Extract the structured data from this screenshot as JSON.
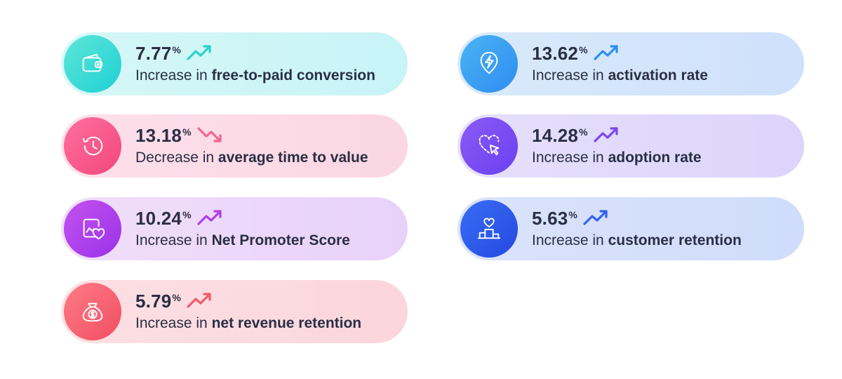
{
  "metrics": [
    {
      "value": "7.77",
      "unit": "%",
      "direction": "up",
      "prefix": "Increase in",
      "label": "free-to-paid conversion",
      "icon": "wallet-icon",
      "colors": {
        "bg_from": "#d6f7f6",
        "bg_to": "#c8f4f7",
        "circle_from": "#5ee6d8",
        "circle_to": "#1fd0d4",
        "arrow": "#2cd2c8"
      }
    },
    {
      "value": "13.62",
      "unit": "%",
      "direction": "up",
      "prefix": "Increase in",
      "label": "activation rate",
      "icon": "lightning-badge-icon",
      "colors": {
        "bg_from": "#d9eafb",
        "bg_to": "#cfe1fb",
        "circle_from": "#4cb4f5",
        "circle_to": "#2d8cf0",
        "arrow": "#2a8ff0"
      }
    },
    {
      "value": "13.18",
      "unit": "%",
      "direction": "down",
      "prefix": "Decrease in",
      "label": "average time to value",
      "icon": "history-clock-icon",
      "colors": {
        "bg_from": "#fde0ea",
        "bg_to": "#fbd6e3",
        "circle_from": "#ff6fa0",
        "circle_to": "#f2477c",
        "arrow": "#f2668f"
      }
    },
    {
      "value": "14.28",
      "unit": "%",
      "direction": "up",
      "prefix": "Increase in",
      "label": "adoption rate",
      "icon": "heart-cursor-icon",
      "colors": {
        "bg_from": "#e6e0fb",
        "bg_to": "#dcd4fb",
        "circle_from": "#8a5cf6",
        "circle_to": "#6b3ff0",
        "arrow": "#7a48f0"
      }
    },
    {
      "value": "10.24",
      "unit": "%",
      "direction": "up",
      "prefix": "Increase in",
      "label": "Net Promoter Score",
      "icon": "chart-heart-icon",
      "colors": {
        "bg_from": "#f1def9",
        "bg_to": "#e8d2fa",
        "circle_from": "#c352f0",
        "circle_to": "#9a32e8",
        "arrow": "#b13fe8"
      }
    },
    {
      "value": "5.63",
      "unit": "%",
      "direction": "up",
      "prefix": "Increase in",
      "label": "customer retention",
      "icon": "podium-heart-icon",
      "colors": {
        "bg_from": "#dbe3fb",
        "bg_to": "#cfdcfb",
        "circle_from": "#3a6ef5",
        "circle_to": "#2448e0",
        "arrow": "#3263f0"
      }
    },
    {
      "value": "5.79",
      "unit": "%",
      "direction": "up",
      "prefix": "Increase in",
      "label": "net revenue retention",
      "icon": "money-bag-icon",
      "colors": {
        "bg_from": "#fde0e3",
        "bg_to": "#fbd6dc",
        "circle_from": "#ff7b86",
        "circle_to": "#f04f62",
        "arrow": "#f2596a"
      }
    }
  ]
}
